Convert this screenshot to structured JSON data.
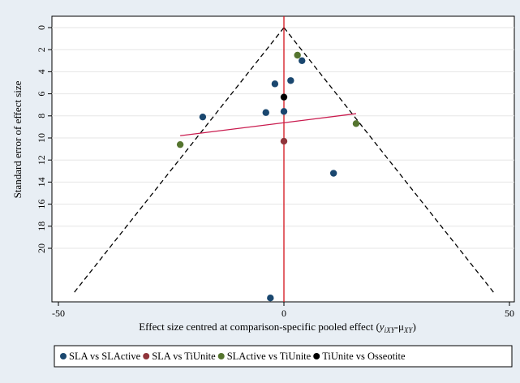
{
  "chart_data": {
    "type": "scatter",
    "title": "",
    "xlabel": "Effect size centred at comparison-specific pooled effect",
    "xlabel_math": {
      "open": "(",
      "y": "y",
      "y_sub": "iXY",
      "minus": "-",
      "mu": "μ",
      "mu_sub": "XY",
      "close": ")"
    },
    "ylabel": "Standard error of effect size",
    "xlim": [
      -50,
      50
    ],
    "ylim": [
      0,
      24
    ],
    "y_reversed": true,
    "x_ticks": [
      -50,
      0,
      50
    ],
    "x_tick_labels": [
      "-50",
      "0",
      "50"
    ],
    "y_ticks": [
      0,
      2,
      4,
      6,
      8,
      10,
      12,
      14,
      16,
      18,
      20
    ],
    "y_tick_labels": [
      "0",
      "2",
      "4",
      "6",
      "8",
      "10",
      "12",
      "14",
      "16",
      "18",
      "20"
    ],
    "grid": true,
    "legend_position": "bottom",
    "series": [
      {
        "name": "SLA vs SLActive",
        "color": "#1a476f",
        "points": [
          {
            "x": 4,
            "y": 3.0
          },
          {
            "x": 1.5,
            "y": 4.8
          },
          {
            "x": -2,
            "y": 5.1
          },
          {
            "x": 0,
            "y": 7.6
          },
          {
            "x": -4,
            "y": 7.7
          },
          {
            "x": -18,
            "y": 8.1
          },
          {
            "x": 11,
            "y": 13.2
          },
          {
            "x": -3,
            "y": 24.5
          }
        ]
      },
      {
        "name": "SLA vs TiUnite",
        "color": "#90353b",
        "points": [
          {
            "x": 0,
            "y": 10.3
          }
        ]
      },
      {
        "name": "SLActive vs TiUnite",
        "color": "#55752f",
        "points": [
          {
            "x": 3,
            "y": 2.5
          },
          {
            "x": 16,
            "y": 8.7
          },
          {
            "x": -23,
            "y": 10.6
          }
        ]
      },
      {
        "name": "TiUnite vs Osseotite",
        "color": "#000000",
        "points": [
          {
            "x": 0,
            "y": 6.3
          }
        ]
      }
    ],
    "funnel": {
      "apex": [
        0,
        0
      ],
      "left_end": [
        -46.5,
        24
      ],
      "right_end": [
        46.5,
        24
      ],
      "style": "dashed",
      "color": "#000000"
    },
    "reference_line": {
      "x": 0,
      "color": "#d4121b"
    },
    "regression_line": {
      "from": [
        -23,
        9.8
      ],
      "to": [
        16,
        7.8
      ],
      "color": "#c91b4e"
    }
  }
}
